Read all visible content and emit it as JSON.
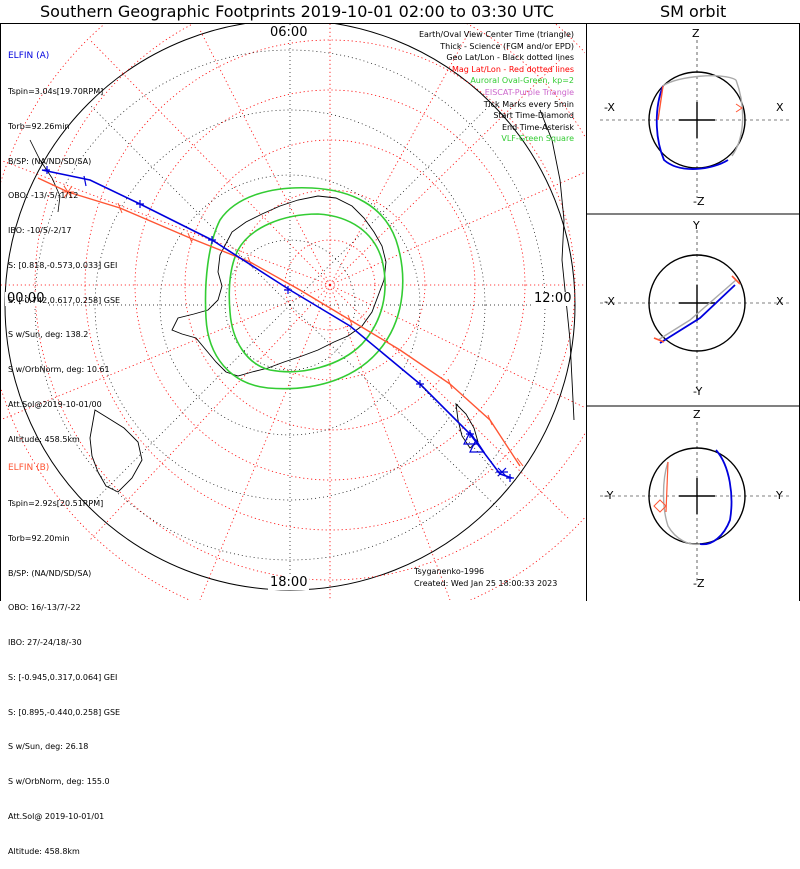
{
  "titles": {
    "main": "Southern Geographic Footprints 2019-10-01 02:00 to 03:30 UTC",
    "sm": "SM orbit"
  },
  "time_labels": {
    "top": "06:00",
    "left": "00:00",
    "right": "12:00",
    "bottom": "18:00"
  },
  "elfin_a": {
    "name": "ELFIN (A)",
    "lines": [
      "Tspin=3.04s[19.70RPM]",
      "Torb=92.26min",
      "B/SP: (NA/ND/SD/SA)",
      "OBO: -13/-5/-1/12",
      "IBO: -10/5/-2/17",
      "S: [0.818,-0.573,0.033] GEI",
      "S: [-0.742,0.617,0.258] GSE",
      "S w/Sun, deg: 138.2",
      "S w/OrbNorm, deg: 10.61",
      "Att.Sol@2019-10-01/00",
      "Altitude: 458.5km"
    ]
  },
  "elfin_b": {
    "name": "ELFIN (B)",
    "lines": [
      "Tspin=2.92s[20.51RPM]",
      "Torb=92.20min",
      "B/SP: (NA/ND/SD/SA)",
      "OBO: 16/-13/7/-22",
      "IBO: 27/-24/18/-30",
      "S: [-0.945,0.317,0.064] GEI",
      "S: [0.895,-0.440,0.258] GSE",
      "S w/Sun, deg: 26.18",
      "S w/OrbNorm, deg: 155.0",
      "Att.Sol@ 2019-10-01/01",
      "Altitude: 458.8km"
    ]
  },
  "legend": [
    {
      "text": "Earth/Oval View Center Time (triangle)",
      "color": "#000000"
    },
    {
      "text": "Thick - Science (FGM and/or EPD)",
      "color": "#000000"
    },
    {
      "text": "Geo Lat/Lon - Black dotted lines",
      "color": "#000000"
    },
    {
      "text": "Mag Lat/Lon - Red dotted lines",
      "color": "#ff0000"
    },
    {
      "text": "Auroral Oval-Green, kp=2",
      "color": "#33cc33"
    },
    {
      "text": "EISCAT-Purple Triangle",
      "color": "#cc66cc"
    },
    {
      "text": "Tick Marks every 5min",
      "color": "#000000"
    },
    {
      "text": "Start Time-Diamond",
      "color": "#000000"
    },
    {
      "text": "End Time-Asterisk",
      "color": "#000000"
    },
    {
      "text": "VLF-Green Square",
      "color": "#33cc33"
    }
  ],
  "credits": {
    "model": "Tsyganenko-1996",
    "created": "Created: Wed Jan 25 18:00:33 2023"
  },
  "sm_panels": [
    {
      "top": "Z",
      "bottom": "-Z",
      "left": "-X",
      "right": "X"
    },
    {
      "top": "Y",
      "bottom": "-Y",
      "left": "-X",
      "right": "X"
    },
    {
      "top": "Z",
      "bottom": "-Z",
      "left": "-Y",
      "right": "Y"
    }
  ],
  "colors": {
    "elfin_a": "#0000dd",
    "elfin_b": "#ff5533",
    "grid_red": "#ff0000",
    "oval_green": "#33cc33",
    "land": "#000000"
  }
}
